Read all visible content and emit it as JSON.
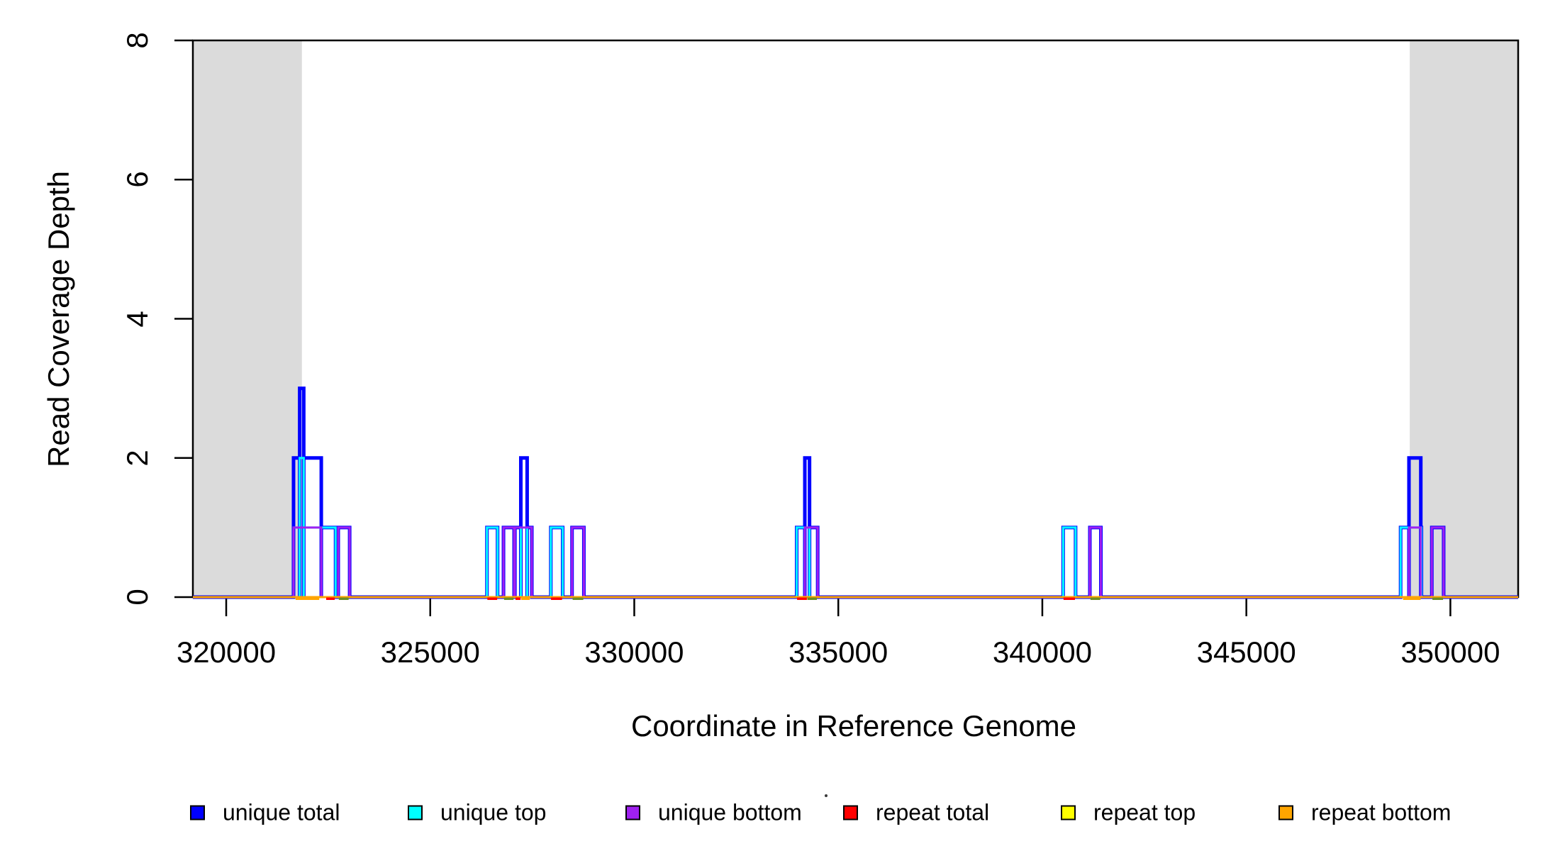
{
  "chart_data": {
    "type": "line",
    "subtype": "step-coverage",
    "title": "",
    "xlabel": "Coordinate in Reference Genome",
    "ylabel": "Read Coverage Depth",
    "xlim": [
      319183,
      351661
    ],
    "ylim": [
      0,
      8
    ],
    "x_ticks": [
      320000,
      325000,
      330000,
      335000,
      340000,
      345000,
      350000
    ],
    "x_tick_labels": [
      "320000",
      "325000",
      "330000",
      "335000",
      "340000",
      "345000",
      "350000"
    ],
    "y_ticks": [
      0,
      2,
      4,
      6,
      8
    ],
    "y_tick_labels": [
      "0",
      "2",
      "4",
      "6",
      "8"
    ],
    "grid": false,
    "legend_position": "bottom",
    "shaded_regions": [
      {
        "start": 319183,
        "end": 321855,
        "color": "#DBDBDB"
      },
      {
        "start": 349005,
        "end": 351661,
        "color": "#DBDBDB"
      }
    ],
    "series": [
      {
        "name": "unique total",
        "color": "#0000FF",
        "line_width": 5,
        "segments": [
          [
            321650,
            321800,
            2
          ],
          [
            321800,
            321900,
            3
          ],
          [
            321900,
            322330,
            2
          ],
          [
            322330,
            322680,
            1
          ],
          [
            322745,
            323025,
            1
          ],
          [
            326390,
            326650,
            1
          ],
          [
            326795,
            327055,
            1
          ],
          [
            327075,
            327220,
            1
          ],
          [
            327220,
            327375,
            2
          ],
          [
            327375,
            327490,
            1
          ],
          [
            327955,
            328245,
            1
          ],
          [
            328475,
            328765,
            1
          ],
          [
            333980,
            334180,
            1
          ],
          [
            334180,
            334295,
            2
          ],
          [
            334295,
            334495,
            1
          ],
          [
            340510,
            340815,
            1
          ],
          [
            341165,
            341435,
            1
          ],
          [
            348780,
            348985,
            1
          ],
          [
            348985,
            349275,
            2
          ],
          [
            349275,
            349290,
            1
          ],
          [
            349545,
            349835,
            1
          ]
        ]
      },
      {
        "name": "unique top",
        "color": "#00FFFF",
        "line_width": 3,
        "segments": [
          [
            321650,
            321800,
            1
          ],
          [
            321800,
            321900,
            2
          ],
          [
            321900,
            322680,
            1
          ],
          [
            326390,
            326650,
            1
          ],
          [
            327220,
            327375,
            1
          ],
          [
            327955,
            328245,
            1
          ],
          [
            333980,
            334295,
            1
          ],
          [
            340510,
            340815,
            1
          ],
          [
            348780,
            349290,
            1
          ]
        ]
      },
      {
        "name": "unique bottom",
        "color": "#A020F0",
        "line_width": 3,
        "segments": [
          [
            321650,
            322330,
            1
          ],
          [
            322745,
            323025,
            1
          ],
          [
            326795,
            327055,
            1
          ],
          [
            327075,
            327490,
            1
          ],
          [
            328475,
            328765,
            1
          ],
          [
            334180,
            334495,
            1
          ],
          [
            341165,
            341435,
            1
          ],
          [
            348985,
            349275,
            1
          ],
          [
            349545,
            349835,
            1
          ]
        ]
      },
      {
        "name": "repeat total",
        "color": "#FF0000",
        "line_width": 3,
        "segments": []
      },
      {
        "name": "repeat top",
        "color": "#FFFF00",
        "line_width": 3,
        "segments": []
      },
      {
        "name": "repeat bottom",
        "color": "#FFA500",
        "line_width": 3,
        "segments": []
      }
    ],
    "baseline_accents": [
      {
        "color": "#FFA500",
        "start": 321700,
        "end": 322280
      },
      {
        "color": "#FF0000",
        "start": 322450,
        "end": 322660
      },
      {
        "color": "#6B8E23",
        "start": 322760,
        "end": 323000
      },
      {
        "color": "#FF0000",
        "start": 326400,
        "end": 326640
      },
      {
        "color": "#6B8E23",
        "start": 326810,
        "end": 327040
      },
      {
        "color": "#FF0000",
        "start": 327090,
        "end": 327215
      },
      {
        "color": "#FFA500",
        "start": 327230,
        "end": 327440
      },
      {
        "color": "#FF0000",
        "start": 327960,
        "end": 328230
      },
      {
        "color": "#6B8E23",
        "start": 328490,
        "end": 328750
      },
      {
        "color": "#FF0000",
        "start": 333990,
        "end": 334230
      },
      {
        "color": "#6B8E23",
        "start": 334240,
        "end": 334475
      },
      {
        "color": "#FF0000",
        "start": 340520,
        "end": 340800
      },
      {
        "color": "#6B8E23",
        "start": 341180,
        "end": 341420
      },
      {
        "color": "#FFA500",
        "start": 348840,
        "end": 349270
      },
      {
        "color": "#6B8E23",
        "start": 349560,
        "end": 349820
      }
    ]
  },
  "legend": {
    "items": [
      {
        "label": "unique total",
        "color": "#0000FF"
      },
      {
        "label": "unique top",
        "color": "#00FFFF"
      },
      {
        "label": "unique bottom",
        "color": "#A020F0"
      },
      {
        "label": "repeat total",
        "color": "#FF0000"
      },
      {
        "label": "repeat top",
        "color": "#FFFF00"
      },
      {
        "label": "repeat bottom",
        "color": "#FFA500"
      }
    ]
  },
  "stray_mark": {
    "glyph": "dot"
  }
}
